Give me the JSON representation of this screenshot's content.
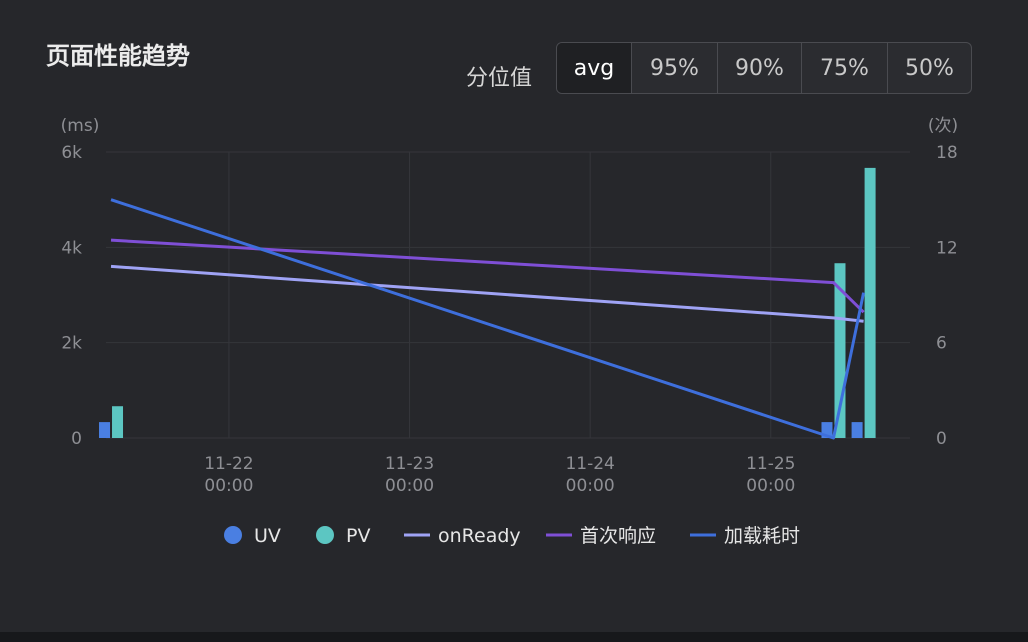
{
  "title": "页面性能趋势",
  "quantile": {
    "label": "分位值",
    "options": [
      "avg",
      "95%",
      "90%",
      "75%",
      "50%"
    ],
    "selected": "avg"
  },
  "colors": {
    "uv": "#4a7fe2",
    "pv": "#5cc6c2",
    "onready": "#9fa3f5",
    "first_response": "#7f4fd6",
    "load_time": "#3e6fdc"
  },
  "chart_data": {
    "type": "bar",
    "x_ticks": [
      {
        "x": "2021-11-22 00:00",
        "line1": "11-22",
        "line2": "00:00"
      },
      {
        "x": "2021-11-23 00:00",
        "line1": "11-23",
        "line2": "00:00"
      },
      {
        "x": "2021-11-24 00:00",
        "line1": "11-24",
        "line2": "00:00"
      },
      {
        "x": "2021-11-25 00:00",
        "line1": "11-25",
        "line2": "00:00"
      }
    ],
    "xlim": [
      "2021-11-21 07:40",
      "2021-11-25 18:30"
    ],
    "y_left": {
      "unit": "(ms)",
      "lim": [
        0,
        6000
      ],
      "ticks": [
        {
          "v": 0,
          "label": "0"
        },
        {
          "v": 2000,
          "label": "2k"
        },
        {
          "v": 4000,
          "label": "4k"
        },
        {
          "v": 6000,
          "label": "6k"
        }
      ]
    },
    "y_right": {
      "unit": "(次)",
      "lim": [
        0,
        18
      ],
      "ticks": [
        {
          "v": 0,
          "label": "0"
        },
        {
          "v": 6,
          "label": "6"
        },
        {
          "v": 12,
          "label": "12"
        },
        {
          "v": 18,
          "label": "18"
        }
      ]
    },
    "legend_position": "bottom",
    "series": [
      {
        "key": "uv",
        "name": "UV",
        "kind": "bar",
        "axis": "right",
        "points": [
          {
            "x": "2021-11-21 08:20",
            "y": 1
          },
          {
            "x": "2021-11-25 08:20",
            "y": 1
          },
          {
            "x": "2021-11-25 12:20",
            "y": 1
          }
        ]
      },
      {
        "key": "pv",
        "name": "PV",
        "kind": "bar",
        "axis": "right",
        "points": [
          {
            "x": "2021-11-21 08:20",
            "y": 2
          },
          {
            "x": "2021-11-25 08:20",
            "y": 11
          },
          {
            "x": "2021-11-25 12:20",
            "y": 17
          }
        ]
      },
      {
        "key": "onready",
        "name": "onReady",
        "kind": "line",
        "axis": "left",
        "points": [
          {
            "x": "2021-11-21 08:20",
            "y": 3600
          },
          {
            "x": "2021-11-25 08:20",
            "y": 2520
          },
          {
            "x": "2021-11-25 12:20",
            "y": 2450
          }
        ]
      },
      {
        "key": "first_response",
        "name": "首次响应",
        "kind": "line",
        "axis": "left",
        "points": [
          {
            "x": "2021-11-21 08:20",
            "y": 4150
          },
          {
            "x": "2021-11-25 08:20",
            "y": 3260
          },
          {
            "x": "2021-11-25 12:20",
            "y": 2640
          }
        ]
      },
      {
        "key": "load_time",
        "name": "加载耗时",
        "kind": "line",
        "axis": "left",
        "points": [
          {
            "x": "2021-11-21 08:20",
            "y": 5000
          },
          {
            "x": "2021-11-25 08:20",
            "y": 0
          },
          {
            "x": "2021-11-25 12:20",
            "y": 3050
          }
        ]
      }
    ]
  }
}
